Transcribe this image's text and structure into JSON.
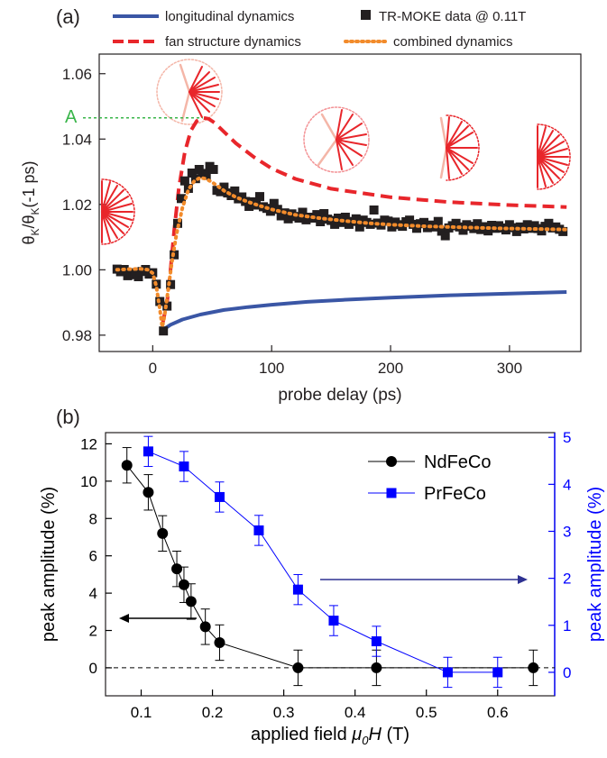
{
  "chart_data": [
    {
      "type": "line",
      "panel_label": "(a)",
      "xlabel": "probe delay (ps)",
      "ylabel_main": "θ",
      "ylabel_sub": "K",
      "ylabel_mid": "/θ",
      "ylabel_sub2": "K",
      "ylabel_tail": "(-1 ps)",
      "xlim": [
        -45,
        360
      ],
      "ylim": [
        0.975,
        1.066
      ],
      "xticks": [
        0,
        100,
        200,
        300
      ],
      "yticks": [
        0.98,
        1.0,
        1.02,
        1.04,
        1.06
      ],
      "ytick_labels": [
        "0.98",
        "1.00",
        "1.02",
        "1.04",
        "1.06"
      ],
      "annotation": "A",
      "annotation_y": 1.0465,
      "legend": [
        {
          "label": "longitudinal dynamics",
          "color": "#3a56a5",
          "style": "solid"
        },
        {
          "label": "TR-MOKE data @ 0.11T",
          "color": "#231f20",
          "style": "square"
        },
        {
          "label": "fan structure dynamics",
          "color": "#e8262b",
          "style": "dashed"
        },
        {
          "label": "combined dynamics",
          "color": "#f28b2b",
          "style": "dotted"
        }
      ],
      "series": [
        {
          "name": "longitudinal dynamics",
          "x": [
            8,
            15,
            25,
            40,
            60,
            80,
            100,
            130,
            160,
            200,
            250,
            300,
            348
          ],
          "y": [
            0.9815,
            0.9832,
            0.9848,
            0.9863,
            0.9877,
            0.9886,
            0.9893,
            0.9902,
            0.9908,
            0.9915,
            0.9922,
            0.9927,
            0.9932
          ]
        },
        {
          "name": "fan structure dynamics",
          "x": [
            8,
            12,
            15,
            18,
            22,
            27,
            32,
            37,
            42,
            47,
            52,
            60,
            70,
            85,
            100,
            120,
            150,
            200,
            250,
            300,
            348
          ],
          "y": [
            0.983,
            0.99,
            1.0,
            1.012,
            1.025,
            1.036,
            1.0425,
            1.0455,
            1.0465,
            1.0462,
            1.045,
            1.0422,
            1.0387,
            1.0345,
            1.031,
            1.0278,
            1.0248,
            1.0222,
            1.0207,
            1.0198,
            1.0192
          ]
        },
        {
          "name": "combined dynamics",
          "x": [
            -30,
            -20,
            -10,
            -4,
            0,
            3,
            6,
            8,
            10,
            13,
            16,
            20,
            25,
            30,
            35,
            40,
            45,
            50,
            55,
            60,
            70,
            80,
            90,
            100,
            120,
            140,
            160,
            180,
            200,
            230,
            260,
            290,
            320,
            348
          ],
          "y": [
            1.0,
            1.0002,
            1.0003,
            1.0,
            0.999,
            0.995,
            0.988,
            0.9825,
            0.986,
            0.994,
            1.002,
            1.011,
            1.019,
            1.0245,
            1.0272,
            1.0282,
            1.0278,
            1.0268,
            1.0255,
            1.0242,
            1.0222,
            1.0208,
            1.0196,
            1.0185,
            1.0168,
            1.0158,
            1.015,
            1.0143,
            1.0138,
            1.0133,
            1.013,
            1.0127,
            1.0125,
            1.0123
          ]
        },
        {
          "name": "TR-MOKE data @ 0.11T",
          "x": [
            -30,
            -27,
            -24,
            -21,
            -18,
            -15,
            -12,
            -9,
            -6,
            -3,
            0,
            3,
            6,
            9,
            12,
            15,
            18,
            21,
            24,
            27,
            30,
            33,
            36,
            39,
            42,
            45,
            48,
            51,
            54,
            57,
            60,
            63,
            66,
            69,
            72,
            75,
            78,
            81,
            84,
            87,
            90,
            93,
            96,
            99,
            102,
            105,
            108,
            111,
            114,
            117,
            120,
            123,
            126,
            129,
            132,
            135,
            138,
            141,
            144,
            147,
            150,
            153,
            156,
            159,
            162,
            165,
            168,
            171,
            174,
            177,
            180,
            183,
            186,
            189,
            192,
            195,
            198,
            201,
            204,
            207,
            210,
            213,
            216,
            219,
            222,
            225,
            228,
            231,
            234,
            237,
            240,
            243,
            246,
            249,
            252,
            255,
            258,
            261,
            264,
            267,
            270,
            273,
            276,
            279,
            282,
            285,
            288,
            291,
            294,
            297,
            300,
            303,
            306,
            309,
            312,
            315,
            318,
            321,
            324,
            327,
            330,
            333,
            336,
            339,
            342,
            345
          ],
          "y": [
            1.0002,
            0.9994,
            1.0001,
            0.9982,
            0.9991,
            0.9985,
            0.9979,
            0.9995,
            1.0001,
            0.9987,
            0.9991,
            0.9956,
            0.9903,
            0.9813,
            0.9889,
            0.9955,
            1.0046,
            1.0142,
            1.0218,
            1.0272,
            1.0249,
            1.0296,
            1.0279,
            1.0307,
            1.0295,
            1.0289,
            1.0316,
            1.0307,
            1.0243,
            1.0239,
            1.0253,
            1.0235,
            1.0227,
            1.0241,
            1.0217,
            1.0223,
            1.0209,
            1.0194,
            1.0208,
            1.0198,
            1.0224,
            1.0193,
            1.0188,
            1.0179,
            1.0203,
            1.0185,
            1.0165,
            1.0174,
            1.0156,
            1.0171,
            1.0163,
            1.0158,
            1.0176,
            1.0153,
            1.0161,
            1.0158,
            1.0169,
            1.0147,
            1.0172,
            1.0155,
            1.0151,
            1.0139,
            1.0158,
            1.0145,
            1.0161,
            1.0139,
            1.0148,
            1.0156,
            1.0131,
            1.0152,
            1.0145,
            1.0139,
            1.0183,
            1.0143,
            1.0137,
            1.0152,
            1.0149,
            1.0131,
            1.0146,
            1.0138,
            1.0133,
            1.0147,
            1.0152,
            1.0139,
            1.0127,
            1.0141,
            1.0145,
            1.0129,
            1.0137,
            1.0131,
            1.0148,
            1.0118,
            1.0104,
            1.0128,
            1.0135,
            1.0142,
            1.0131,
            1.0121,
            1.0138,
            1.0133,
            1.0126,
            1.0141,
            1.0123,
            1.0132,
            1.0119,
            1.0136,
            1.0127,
            1.0135,
            1.0128,
            1.0122,
            1.0138,
            1.0129,
            1.0117,
            1.0131,
            1.0125,
            1.0138,
            1.0127,
            1.0135,
            1.0126,
            1.0119,
            1.0133,
            1.0142,
            1.0128,
            1.0131,
            1.0124,
            1.0117
          ]
        }
      ]
    },
    {
      "type": "scatter",
      "panel_label": "(b)",
      "xlabel_text": "applied field ",
      "xlabel_sym": "μ",
      "xlabel_sub": "0",
      "xlabel_var": "H",
      "xlabel_unit": " (T)",
      "ylabel_left": "peak amplitude (%)",
      "ylabel_right": "peak amplitude (%)",
      "xlim": [
        0.05,
        0.68
      ],
      "ylim_left": [
        -1.5,
        12.6
      ],
      "ylim_right": [
        -0.5,
        5.1
      ],
      "xticks": [
        0.1,
        0.2,
        0.3,
        0.4,
        0.5,
        0.6
      ],
      "xtick_labels": [
        "0.1",
        "0.2",
        "0.3",
        "0.4",
        "0.5",
        "0.6"
      ],
      "yticks_left": [
        0,
        2,
        4,
        6,
        8,
        10,
        12
      ],
      "yticks_right": [
        0,
        1,
        2,
        3,
        4,
        5
      ],
      "left_color": "#000000",
      "right_color": "#0000ff",
      "series": [
        {
          "name": "NdFeCo",
          "axis": "left",
          "marker": "circle",
          "x": [
            0.08,
            0.11,
            0.13,
            0.15,
            0.16,
            0.17,
            0.19,
            0.21,
            0.32,
            0.43,
            0.65
          ],
          "y": [
            10.85,
            9.4,
            7.2,
            5.3,
            4.45,
            3.55,
            2.2,
            1.35,
            0.0,
            0.0,
            0.0
          ],
          "err": [
            0.95,
            0.95,
            0.95,
            0.95,
            0.95,
            0.95,
            0.95,
            0.95,
            0.95,
            0.95,
            0.95
          ]
        },
        {
          "name": "PrFeCo",
          "axis": "right",
          "marker": "square",
          "x": [
            0.11,
            0.16,
            0.21,
            0.265,
            0.32,
            0.37,
            0.43,
            0.53,
            0.6
          ],
          "y": [
            4.7,
            4.38,
            3.73,
            3.02,
            1.76,
            1.1,
            0.66,
            0.0,
            0.0
          ],
          "err": [
            0.32,
            0.32,
            0.32,
            0.32,
            0.32,
            0.32,
            0.32,
            0.32,
            0.32
          ]
        }
      ]
    }
  ]
}
